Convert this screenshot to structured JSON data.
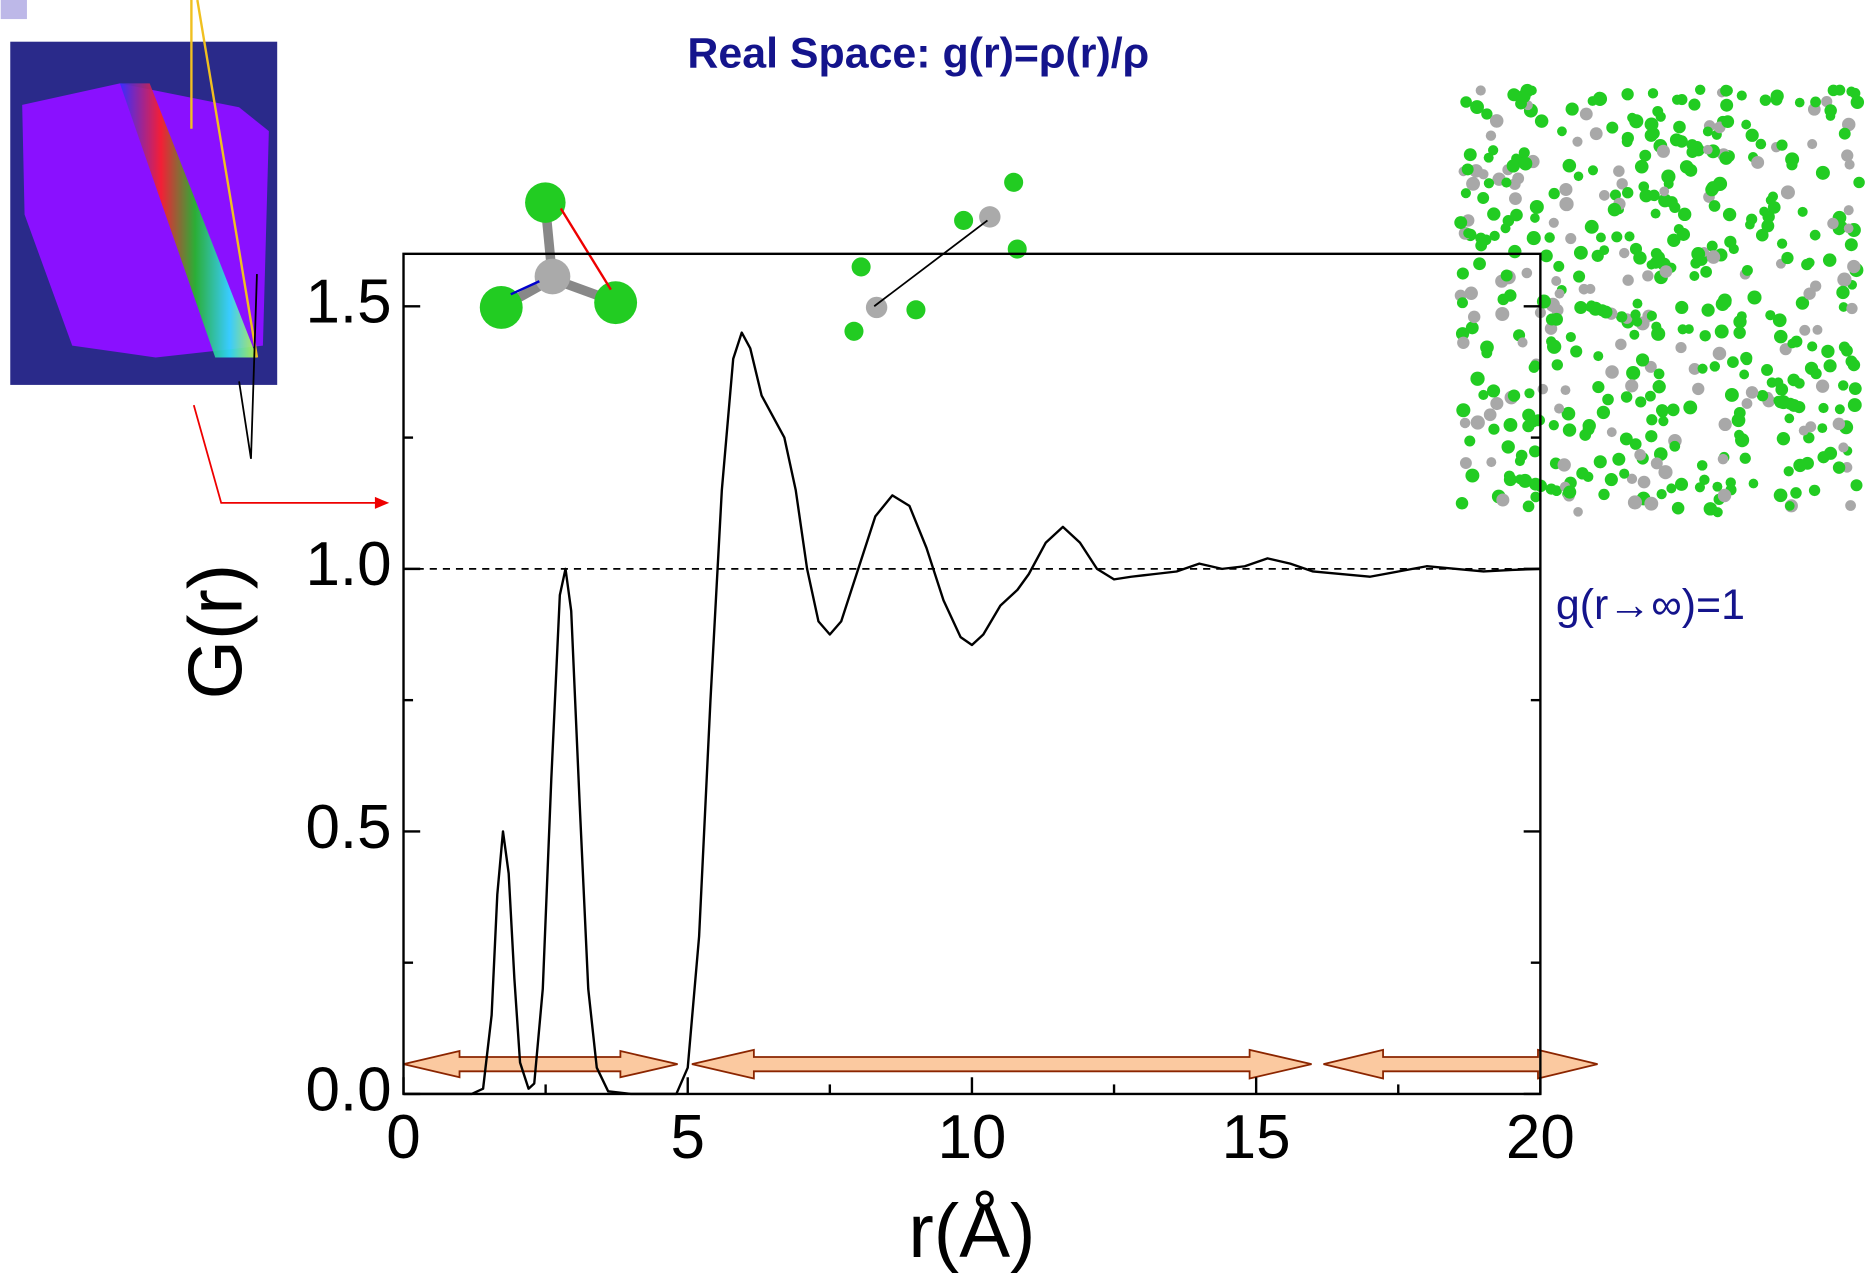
{
  "chart_data": {
    "type": "line",
    "title": "Real Space: g(r)=ρ(r)/ρ",
    "x_label": "r(Å)",
    "y_label": "G(r)",
    "annotation": "g(r→∞)=1",
    "reference_line": 1,
    "xlim": [
      0,
      20
    ],
    "ylim": [
      0,
      1.6
    ],
    "xticks": [
      0,
      5,
      10,
      15,
      20
    ],
    "xminorticks": [
      2.5,
      7.5,
      12.5,
      17.5
    ],
    "yticks": [
      {
        "value": 0,
        "label": "0.0"
      },
      0.5,
      {
        "value": 1,
        "label": "1.0"
      },
      1.5
    ],
    "yminorticks": [
      0.25,
      0.75,
      1.25
    ],
    "color": "#000000",
    "x": [
      0,
      1.2,
      1.4,
      1.55,
      1.65,
      1.75,
      1.85,
      1.95,
      2.05,
      2.2,
      2.3,
      2.45,
      2.6,
      2.75,
      2.85,
      2.95,
      3.1,
      3.25,
      3.4,
      3.6,
      4.0,
      4.8,
      5.0,
      5.2,
      5.4,
      5.6,
      5.8,
      5.95,
      6.1,
      6.3,
      6.5,
      6.7,
      6.9,
      7.1,
      7.3,
      7.5,
      7.7,
      8.0,
      8.3,
      8.6,
      8.9,
      9.2,
      9.5,
      9.8,
      10.0,
      10.2,
      10.5,
      10.8,
      11.0,
      11.3,
      11.6,
      11.9,
      12.2,
      12.5,
      12.8,
      13.2,
      13.6,
      14.0,
      14.4,
      14.8,
      15.2,
      15.6,
      16.0,
      16.5,
      17.0,
      17.5,
      18.0,
      18.5,
      19.0,
      19.5,
      20.0
    ],
    "values": [
      0,
      0,
      0.01,
      0.15,
      0.38,
      0.5,
      0.42,
      0.22,
      0.06,
      0.01,
      0.02,
      0.2,
      0.6,
      0.95,
      1.0,
      0.92,
      0.55,
      0.2,
      0.05,
      0.005,
      0,
      0,
      0.05,
      0.3,
      0.75,
      1.15,
      1.4,
      1.45,
      1.42,
      1.33,
      1.29,
      1.25,
      1.15,
      1.0,
      0.9,
      0.875,
      0.9,
      1.0,
      1.1,
      1.14,
      1.12,
      1.04,
      0.94,
      0.87,
      0.855,
      0.875,
      0.93,
      0.96,
      0.99,
      1.05,
      1.08,
      1.05,
      1.0,
      0.98,
      0.985,
      0.99,
      0.995,
      1.01,
      1.0,
      1.005,
      1.02,
      1.01,
      0.995,
      0.99,
      0.985,
      0.995,
      1.005,
      1.0,
      0.995,
      0.998,
      1.0
    ]
  }
}
